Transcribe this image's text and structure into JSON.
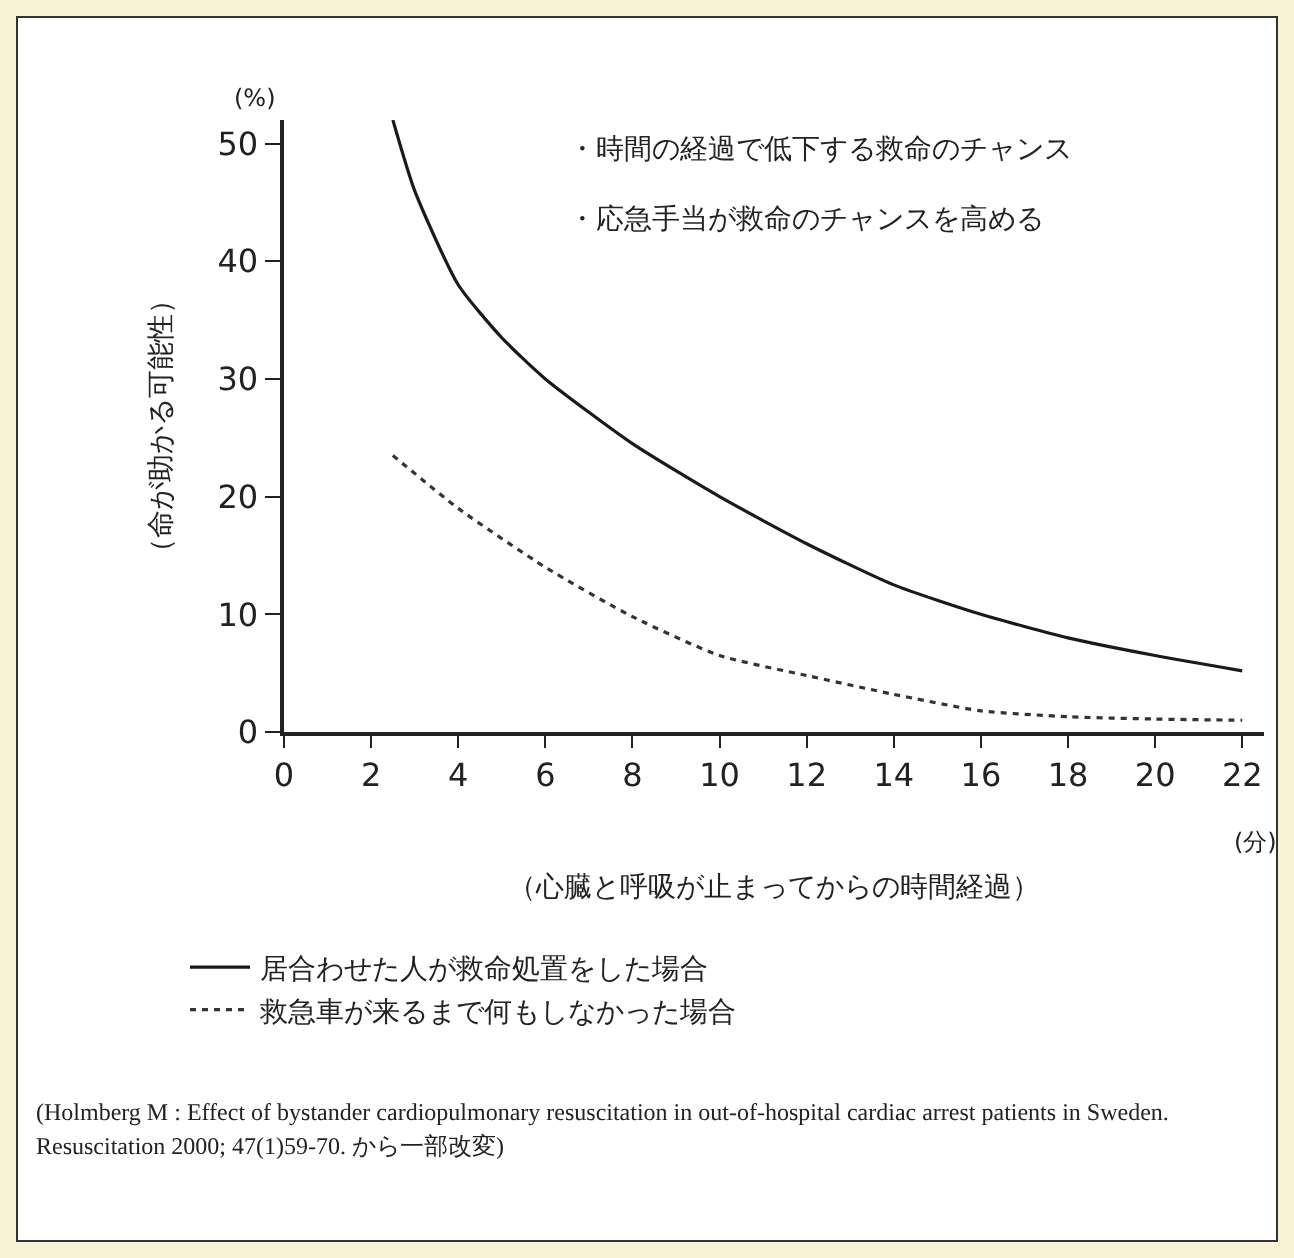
{
  "chart_data": {
    "type": "line",
    "xlabel": "（心臓と呼吸が止まってからの時間経過）",
    "ylabel": "（命が助かる可能性）",
    "xlim": [
      0,
      22.5
    ],
    "xticks": [
      0,
      2,
      4,
      6,
      8,
      10,
      12,
      14,
      16,
      18,
      20,
      22
    ],
    "ylim": [
      0,
      52
    ],
    "yticks": [
      0,
      10,
      20,
      30,
      40,
      50
    ],
    "grid": false,
    "legend": "bottom",
    "marker": "none",
    "series": [
      {
        "name": "居合わせた人が救命処置をした場合",
        "color": "#1a1a1a",
        "line_style": "solid",
        "x": [
          2.5,
          3,
          4,
          5,
          6,
          8,
          10,
          12,
          14,
          16,
          18,
          20,
          22
        ],
        "values": [
          52,
          46,
          38,
          33.5,
          30,
          24.5,
          20,
          16,
          12.5,
          10,
          8,
          6.5,
          5.2
        ]
      },
      {
        "name": "救急車が来るまで何もしなかった場合",
        "color": "#333333",
        "line_style": "dotted",
        "x": [
          2.5,
          4,
          6,
          8,
          10,
          12,
          14,
          16,
          18,
          20,
          22
        ],
        "values": [
          23.5,
          19,
          14,
          9.8,
          6.5,
          4.8,
          3.2,
          1.8,
          1.3,
          1.1,
          1
        ]
      }
    ],
    "annotations": [
      "(%)",
      "(分)",
      "・時間の経過で低下する救命のチャンス",
      "・応急手当が救命のチャンスを高める",
      "(Holmberg M : Effect of bystander cardiopulmonary resuscitation in out-of-hospital cardiac arrest patients in Sweden. Resuscitation 2000; 47(1)59-70. から一部改変)"
    ]
  }
}
